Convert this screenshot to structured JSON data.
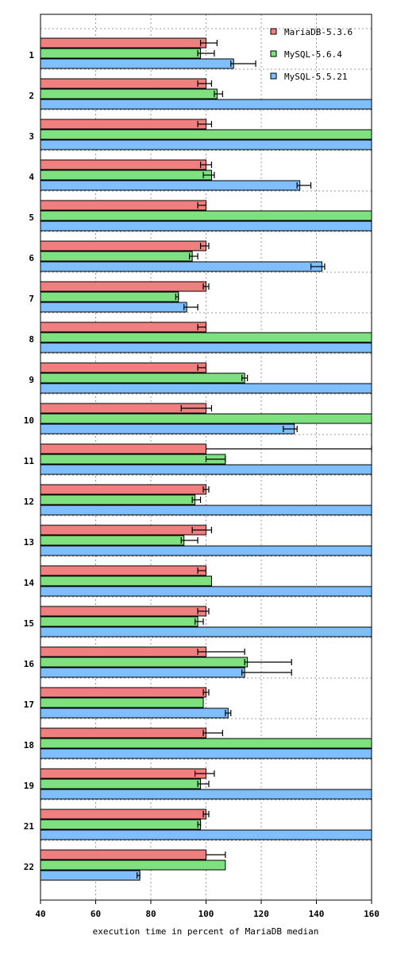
{
  "chart_data": {
    "type": "bar",
    "orientation": "horizontal",
    "title": "",
    "xlabel": "execution time in percent of MariaDB median",
    "ylabel": "",
    "xlim": [
      40,
      160
    ],
    "xticks": [
      40,
      60,
      80,
      100,
      120,
      140,
      160
    ],
    "grid": true,
    "legend_position": "top-right",
    "categories": [
      "1",
      "2",
      "3",
      "4",
      "5",
      "6",
      "7",
      "8",
      "9",
      "10",
      "11",
      "12",
      "13",
      "14",
      "15",
      "16",
      "17",
      "18",
      "19",
      "21",
      "22"
    ],
    "series": [
      {
        "name": "MariaDB-5.3.6",
        "color": "#f07f7f",
        "values": [
          100,
          100,
          100,
          100,
          100,
          100,
          100,
          100,
          100,
          100,
          100,
          100,
          100,
          100,
          100,
          100,
          100,
          100,
          100,
          100,
          100
        ],
        "err_low": [
          98,
          97,
          97,
          98,
          97,
          98,
          99,
          97,
          97,
          91,
          100,
          99,
          95,
          97,
          97,
          97,
          99,
          99,
          96,
          99,
          100
        ],
        "err_high": [
          104,
          102,
          102,
          102,
          100,
          101,
          101,
          100,
          100,
          102,
          160,
          101,
          102,
          100,
          101,
          114,
          101,
          106,
          103,
          101,
          107
        ]
      },
      {
        "name": "MySQL-5.6.4",
        "color": "#7fe07f",
        "values": [
          98,
          104,
          160,
          102,
          160,
          95,
          90,
          160,
          114,
          160,
          107,
          96,
          92,
          102,
          97,
          115,
          99,
          160,
          98,
          98,
          107
        ],
        "err_low": [
          97,
          103,
          null,
          99,
          null,
          94,
          89,
          null,
          113,
          null,
          100,
          95,
          91,
          null,
          96,
          114,
          null,
          null,
          97,
          97,
          null
        ],
        "err_high": [
          103,
          106,
          null,
          103,
          null,
          97,
          90,
          null,
          115,
          null,
          107,
          98,
          97,
          null,
          99,
          131,
          null,
          null,
          101,
          98,
          null
        ]
      },
      {
        "name": "MySQL-5.5.21",
        "color": "#7fbfff",
        "values": [
          110,
          160,
          160,
          134,
          160,
          142,
          93,
          160,
          160,
          132,
          160,
          160,
          160,
          160,
          160,
          114,
          108,
          160,
          160,
          160,
          76
        ],
        "err_low": [
          109,
          null,
          null,
          133,
          null,
          138,
          92,
          null,
          null,
          128,
          null,
          null,
          null,
          null,
          null,
          113,
          107,
          null,
          null,
          null,
          75
        ],
        "err_high": [
          118,
          null,
          null,
          138,
          null,
          143,
          97,
          null,
          null,
          133,
          null,
          null,
          null,
          null,
          null,
          131,
          109,
          null,
          null,
          null,
          76
        ]
      }
    ]
  }
}
